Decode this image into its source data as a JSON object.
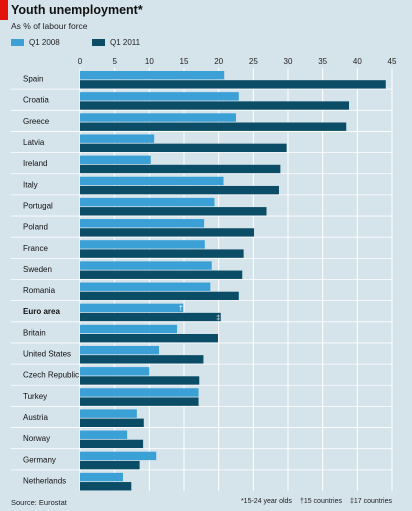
{
  "title": "Youth unemployment*",
  "subtitle": "As % of labour force",
  "source": "Source: Eurostat",
  "footnotes": [
    "*15-24 year olds",
    "†15 countries",
    "‡17 countries"
  ],
  "colors": {
    "series_2008": "#3aa0d6",
    "series_2011": "#0b4d66",
    "background": "#d5e3eb",
    "accent": "#e3120b"
  },
  "chart_data": {
    "type": "bar",
    "orientation": "horizontal",
    "title": "Youth unemployment*",
    "subtitle": "As % of labour force",
    "xlim": [
      0,
      45
    ],
    "ticks": [
      0,
      5,
      10,
      15,
      20,
      25,
      30,
      35,
      40,
      45
    ],
    "grid": true,
    "legend": "top-left",
    "categories": [
      "Spain",
      "Croatia",
      "Greece",
      "Latvia",
      "Ireland",
      "Italy",
      "Portugal",
      "Poland",
      "France",
      "Sweden",
      "Romania",
      "Euro area",
      "Britain",
      "United States",
      "Czech Republic",
      "Turkey",
      "Austria",
      "Norway",
      "Germany",
      "Netherlands"
    ],
    "series": [
      {
        "name": "Q1 2008",
        "values": [
          20.8,
          22.9,
          22.5,
          10.7,
          10.2,
          20.7,
          19.4,
          17.9,
          18.0,
          19.0,
          18.8,
          14.9,
          14.0,
          11.4,
          10.0,
          17.1,
          8.2,
          6.8,
          11.0,
          6.2
        ]
      },
      {
        "name": "Q1 2011",
        "values": [
          44.1,
          38.8,
          38.4,
          29.8,
          28.9,
          28.7,
          26.9,
          25.1,
          23.6,
          23.4,
          22.9,
          20.3,
          19.9,
          17.8,
          17.2,
          17.1,
          9.2,
          9.1,
          8.6,
          7.4
        ]
      }
    ],
    "annotations": [
      {
        "category": "Euro area",
        "series": "Q1 2008",
        "marker": "†"
      },
      {
        "category": "Euro area",
        "series": "Q1 2011",
        "marker": "‡"
      }
    ]
  }
}
